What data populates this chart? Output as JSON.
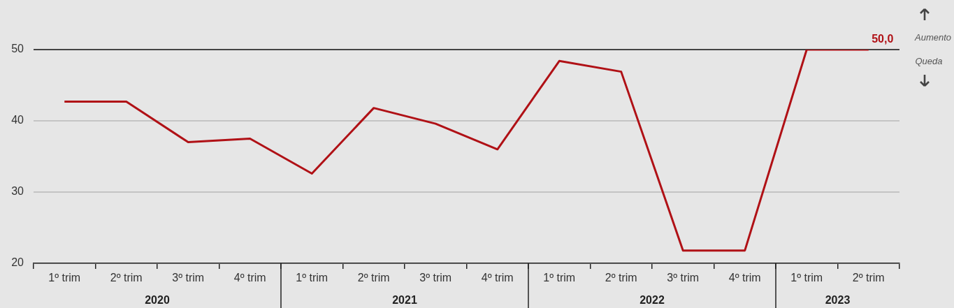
{
  "chart_data": {
    "type": "line",
    "categories": [
      "1º trim",
      "2º trim",
      "3º trim",
      "4º trim",
      "1º trim",
      "2º trim",
      "3º trim",
      "4º trim",
      "1º trim",
      "2º trim",
      "3º trim",
      "4º trim",
      "1º trim",
      "2º trim"
    ],
    "series": [
      {
        "color": "#b01116",
        "values": [
          42.7,
          42.7,
          37.0,
          37.5,
          32.6,
          41.8,
          39.6,
          36.0,
          48.4,
          46.9,
          21.8,
          21.8,
          50.0,
          50.0
        ],
        "value_labels": [
          null,
          null,
          null,
          null,
          null,
          null,
          null,
          null,
          null,
          null,
          null,
          null,
          null,
          "50,0"
        ]
      }
    ],
    "ylim": [
      20,
      50
    ],
    "yticks": [
      20,
      30,
      40,
      50
    ],
    "grid": "y",
    "legend": false,
    "marker": "none",
    "line_style": "solid",
    "annotations": [
      "Aumento",
      "Queda",
      "2020",
      "2021",
      "2022",
      "2023"
    ]
  }
}
